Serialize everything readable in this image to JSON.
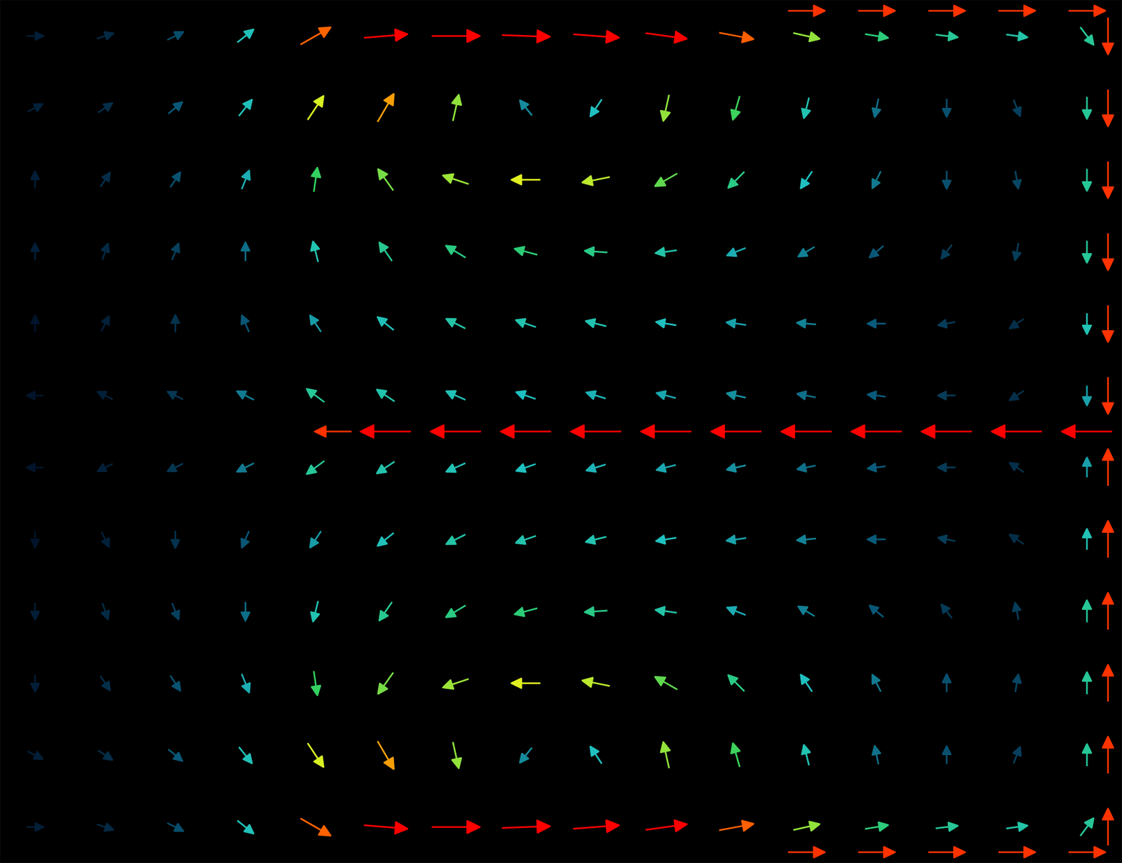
{
  "chart_data": {
    "type": "quiver",
    "xlim": [
      0,
      16
    ],
    "ylim": [
      0,
      12
    ],
    "tick_labels": false,
    "clim": [
      0,
      1
    ],
    "x": [
      0.5,
      1.5,
      2.5,
      3.5,
      4.5,
      5.5,
      6.5,
      7.5,
      8.5,
      9.5,
      10.5,
      11.5,
      12.5,
      13.5,
      14.5,
      15.5,
      0.5,
      1.5,
      2.5,
      3.5,
      4.5,
      5.5,
      6.5,
      7.5,
      8.5,
      9.5,
      10.5,
      11.5,
      12.5,
      13.5,
      14.5,
      15.5,
      0.5,
      1.5,
      2.5,
      3.5,
      4.5,
      5.5,
      6.5,
      7.5,
      8.5,
      9.5,
      10.5,
      11.5,
      12.5,
      13.5,
      14.5,
      15.5,
      0.5,
      1.5,
      2.5,
      3.5,
      4.5,
      5.5,
      6.5,
      7.5,
      8.5,
      9.5,
      10.5,
      11.5,
      12.5,
      13.5,
      14.5,
      15.5,
      0.5,
      1.5,
      2.5,
      3.5,
      4.5,
      5.5,
      6.5,
      7.5,
      8.5,
      9.5,
      10.5,
      11.5,
      12.5,
      13.5,
      14.5,
      15.5,
      0.5,
      1.5,
      2.5,
      3.5,
      4.5,
      5.5,
      6.5,
      7.5,
      8.5,
      9.5,
      10.5,
      11.5,
      12.5,
      13.5,
      14.5,
      15.5,
      0.5,
      1.5,
      2.5,
      3.5,
      4.5,
      5.5,
      6.5,
      7.5,
      8.5,
      9.5,
      10.5,
      11.5,
      12.5,
      13.5,
      14.5,
      15.5,
      0.5,
      1.5,
      2.5,
      3.5,
      4.5,
      5.5,
      6.5,
      7.5,
      8.5,
      9.5,
      10.5,
      11.5,
      12.5,
      13.5,
      14.5,
      15.5,
      0.5,
      1.5,
      2.5,
      3.5,
      4.5,
      5.5,
      6.5,
      7.5,
      8.5,
      9.5,
      10.5,
      11.5,
      12.5,
      13.5,
      14.5,
      15.5,
      0.5,
      1.5,
      2.5,
      3.5,
      4.5,
      5.5,
      6.5,
      7.5,
      8.5,
      9.5,
      10.5,
      11.5,
      12.5,
      13.5,
      14.5,
      15.5,
      0.5,
      1.5,
      2.5,
      3.5,
      4.5,
      5.5,
      6.5,
      7.5,
      8.5,
      9.5,
      10.5,
      11.5,
      12.5,
      13.5,
      14.5,
      15.5,
      0.5,
      1.5,
      2.5,
      3.5,
      4.5,
      5.5,
      6.5,
      7.5,
      8.5,
      9.5,
      10.5,
      11.5,
      12.5,
      13.5,
      14.5,
      15.5,
      4.75,
      5.5,
      6.5,
      7.5,
      8.5,
      9.5,
      10.5,
      11.5,
      12.5,
      13.5,
      14.5,
      15.5,
      15.8,
      15.8,
      15.8,
      15.8,
      15.8,
      15.8,
      15.8,
      15.8,
      15.8,
      15.8,
      15.8,
      15.8,
      11.5,
      12.5,
      13.5,
      14.5,
      15.5,
      11.5,
      12.5,
      13.5,
      14.5,
      15.5
    ],
    "y": [
      11.5,
      11.5,
      11.5,
      11.5,
      11.5,
      11.5,
      11.5,
      11.5,
      11.5,
      11.5,
      11.5,
      11.5,
      11.5,
      11.5,
      11.5,
      11.5,
      10.5,
      10.5,
      10.5,
      10.5,
      10.5,
      10.5,
      10.5,
      10.5,
      10.5,
      10.5,
      10.5,
      10.5,
      10.5,
      10.5,
      10.5,
      10.5,
      9.5,
      9.5,
      9.5,
      9.5,
      9.5,
      9.5,
      9.5,
      9.5,
      9.5,
      9.5,
      9.5,
      9.5,
      9.5,
      9.5,
      9.5,
      9.5,
      8.5,
      8.5,
      8.5,
      8.5,
      8.5,
      8.5,
      8.5,
      8.5,
      8.5,
      8.5,
      8.5,
      8.5,
      8.5,
      8.5,
      8.5,
      8.5,
      7.5,
      7.5,
      7.5,
      7.5,
      7.5,
      7.5,
      7.5,
      7.5,
      7.5,
      7.5,
      7.5,
      7.5,
      7.5,
      7.5,
      7.5,
      7.5,
      6.5,
      6.5,
      6.5,
      6.5,
      6.5,
      6.5,
      6.5,
      6.5,
      6.5,
      6.5,
      6.5,
      6.5,
      6.5,
      6.5,
      6.5,
      6.5,
      5.5,
      5.5,
      5.5,
      5.5,
      5.5,
      5.5,
      5.5,
      5.5,
      5.5,
      5.5,
      5.5,
      5.5,
      5.5,
      5.5,
      5.5,
      5.5,
      4.5,
      4.5,
      4.5,
      4.5,
      4.5,
      4.5,
      4.5,
      4.5,
      4.5,
      4.5,
      4.5,
      4.5,
      4.5,
      4.5,
      4.5,
      4.5,
      3.5,
      3.5,
      3.5,
      3.5,
      3.5,
      3.5,
      3.5,
      3.5,
      3.5,
      3.5,
      3.5,
      3.5,
      3.5,
      3.5,
      3.5,
      3.5,
      2.5,
      2.5,
      2.5,
      2.5,
      2.5,
      2.5,
      2.5,
      2.5,
      2.5,
      2.5,
      2.5,
      2.5,
      2.5,
      2.5,
      2.5,
      2.5,
      1.5,
      1.5,
      1.5,
      1.5,
      1.5,
      1.5,
      1.5,
      1.5,
      1.5,
      1.5,
      1.5,
      1.5,
      1.5,
      1.5,
      1.5,
      1.5,
      0.5,
      0.5,
      0.5,
      0.5,
      0.5,
      0.5,
      0.5,
      0.5,
      0.5,
      0.5,
      0.5,
      0.5,
      0.5,
      0.5,
      0.5,
      0.5,
      6,
      6,
      6,
      6,
      6,
      6,
      6,
      6,
      6,
      6,
      6,
      6,
      11.5,
      10.5,
      9.5,
      8.5,
      7.5,
      6.5,
      5.5,
      4.5,
      3.5,
      2.5,
      1.5,
      0.5,
      11.85,
      11.85,
      11.85,
      11.85,
      11.85,
      0.15,
      0.15,
      0.15,
      0.15,
      0.15
    ],
    "u": [
      0.02,
      0.03,
      0.06,
      0.15,
      0.7,
      1.2,
      1.4,
      1.4,
      1.3,
      1.1,
      0.8,
      0.45,
      0.3,
      0.25,
      0.22,
      0.15,
      0.02,
      0.03,
      0.06,
      0.12,
      0.3,
      0.35,
      0.1,
      -0.08,
      -0.1,
      -0.1,
      -0.1,
      -0.05,
      -0.02,
      0,
      0.02,
      0,
      0,
      0.02,
      0.04,
      0.06,
      0.05,
      -0.25,
      -0.45,
      -0.55,
      -0.5,
      -0.35,
      -0.2,
      -0.1,
      -0.05,
      0,
      0.01,
      0,
      0,
      0.01,
      0.02,
      0,
      -0.05,
      -0.15,
      -0.25,
      -0.3,
      -0.28,
      -0.22,
      -0.15,
      -0.1,
      -0.06,
      -0.03,
      -0.01,
      0,
      0,
      0.01,
      0,
      -0.03,
      -0.08,
      -0.15,
      -0.2,
      -0.2,
      -0.2,
      -0.18,
      -0.15,
      -0.12,
      -0.08,
      -0.05,
      -0.03,
      0,
      -0.01,
      -0.02,
      -0.04,
      -0.1,
      -0.2,
      -0.18,
      -0.18,
      -0.17,
      -0.16,
      -0.15,
      -0.13,
      -0.1,
      -0.08,
      -0.05,
      -0.03,
      0,
      -0.01,
      -0.02,
      -0.04,
      -0.1,
      -0.2,
      -0.18,
      -0.18,
      -0.17,
      -0.16,
      -0.15,
      -0.13,
      -0.1,
      -0.08,
      -0.05,
      -0.03,
      0,
      0,
      0.01,
      0,
      -0.03,
      -0.08,
      -0.15,
      -0.2,
      -0.2,
      -0.2,
      -0.18,
      -0.15,
      -0.12,
      -0.08,
      -0.05,
      -0.03,
      0,
      0,
      0.01,
      0.02,
      0,
      -0.05,
      -0.15,
      -0.25,
      -0.3,
      -0.28,
      -0.22,
      -0.15,
      -0.1,
      -0.06,
      -0.03,
      -0.01,
      0,
      0,
      0.02,
      0.04,
      0.06,
      0.05,
      -0.25,
      -0.45,
      -0.55,
      -0.5,
      -0.35,
      -0.2,
      -0.1,
      -0.05,
      0,
      0.01,
      0,
      0.02,
      0.03,
      0.06,
      0.12,
      0.3,
      0.35,
      0.1,
      -0.08,
      -0.1,
      -0.1,
      -0.1,
      -0.05,
      -0.02,
      0,
      0.02,
      0,
      0.02,
      0.03,
      0.06,
      0.15,
      0.7,
      1.2,
      1.4,
      1.4,
      1.3,
      1.1,
      0.8,
      0.45,
      0.3,
      0.25,
      0.22,
      0.15,
      -0.9,
      -1.5,
      -1.5,
      -1.5,
      -1.5,
      -1.5,
      -1.5,
      -1.5,
      -1.5,
      -1.5,
      -1.5,
      -1.5,
      0,
      0,
      0,
      0,
      0,
      0,
      0,
      0,
      0,
      0,
      0,
      0,
      0.9,
      0.9,
      0.9,
      0.9,
      0.9,
      0.9,
      0.9,
      0.9,
      0.9,
      0.9
    ],
    "v": [
      0,
      0.01,
      0.03,
      0.12,
      0.4,
      0.1,
      0,
      -0.05,
      -0.1,
      -0.15,
      -0.15,
      -0.1,
      -0.05,
      -0.03,
      -0.03,
      -0.2,
      0.01,
      0.02,
      0.05,
      0.15,
      0.45,
      0.6,
      0.45,
      0.1,
      -0.15,
      -0.45,
      -0.35,
      -0.2,
      -0.1,
      -0.07,
      -0.05,
      -0.25,
      0.02,
      0.03,
      0.06,
      0.15,
      0.35,
      0.35,
      0.15,
      0,
      -0.1,
      -0.2,
      -0.2,
      -0.15,
      -0.1,
      -0.07,
      -0.06,
      -0.25,
      0.02,
      0.03,
      0.05,
      0.1,
      0.2,
      0.22,
      0.15,
      0.08,
      0.02,
      -0.03,
      -0.06,
      -0.06,
      -0.05,
      -0.04,
      -0.05,
      -0.25,
      0.01,
      0.02,
      0.04,
      0.07,
      0.12,
      0.12,
      0.1,
      0.07,
      0.05,
      0.03,
      0.02,
      0.01,
      0,
      -0.01,
      -0.02,
      -0.2,
      0,
      0.01,
      0.02,
      0.05,
      0.15,
      0.12,
      0.08,
      0.06,
      0.05,
      0.04,
      0.03,
      0.02,
      0.01,
      0,
      -0.02,
      -0.15,
      0,
      -0.01,
      -0.02,
      -0.05,
      -0.15,
      -0.12,
      -0.08,
      -0.06,
      -0.05,
      -0.04,
      -0.03,
      -0.02,
      -0.01,
      0,
      0.02,
      0.15,
      -0.01,
      -0.02,
      -0.04,
      -0.07,
      -0.12,
      -0.12,
      -0.1,
      -0.07,
      -0.05,
      -0.03,
      -0.02,
      -0.01,
      0,
      0.01,
      0.02,
      0.2,
      -0.02,
      -0.03,
      -0.05,
      -0.1,
      -0.2,
      -0.22,
      -0.15,
      -0.08,
      -0.02,
      0.03,
      0.06,
      0.06,
      0.05,
      0.04,
      0.05,
      0.25,
      -0.02,
      -0.03,
      -0.06,
      -0.15,
      -0.35,
      -0.35,
      -0.15,
      0,
      0.1,
      0.2,
      0.2,
      0.15,
      0.1,
      0.07,
      0.06,
      0.25,
      -0.01,
      -0.02,
      -0.05,
      -0.15,
      -0.45,
      -0.6,
      -0.45,
      -0.1,
      0.15,
      0.45,
      0.35,
      0.2,
      0.1,
      0.07,
      0.05,
      0.25,
      0,
      -0.01,
      -0.03,
      -0.12,
      -0.4,
      -0.1,
      0,
      0.05,
      0.1,
      0.15,
      0.15,
      0.1,
      0.05,
      0.03,
      0.03,
      0.2,
      0,
      0,
      0,
      0,
      0,
      0,
      0,
      0,
      0,
      0,
      0,
      0,
      -0.9,
      -0.9,
      -0.9,
      -0.9,
      -0.9,
      -0.9,
      0.9,
      0.9,
      0.9,
      0.9,
      0.9,
      0.9,
      0,
      0,
      0,
      0,
      0,
      0,
      0,
      0,
      0,
      0
    ]
  }
}
